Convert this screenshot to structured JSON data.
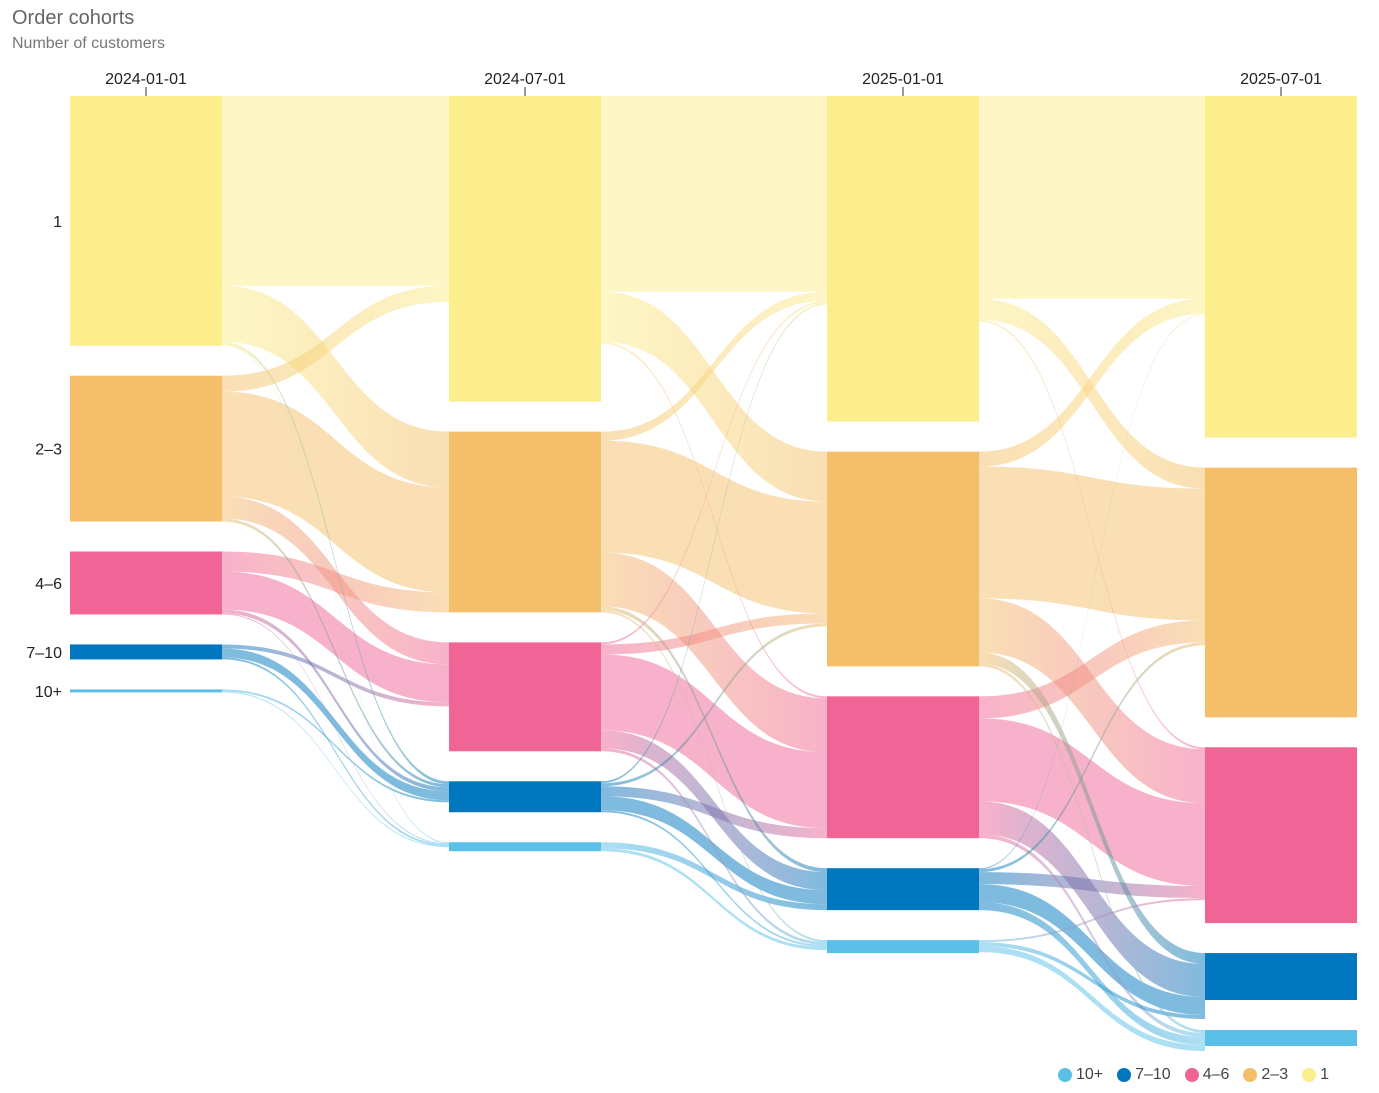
{
  "header": {
    "title": "Order cohorts",
    "subtitle": "Number of customers"
  },
  "chart_data": {
    "type": "sankey",
    "title": "Order cohorts",
    "subtitle": "Number of customers",
    "periods": [
      "2024-01-01",
      "2024-07-01",
      "2025-01-01",
      "2025-07-01"
    ],
    "categories": [
      "1",
      "2–3",
      "4–6",
      "7–10",
      "10+"
    ],
    "colors": {
      "1": "#fcee8c",
      "2–3": "#f4be6a",
      "4–6": "#f06496",
      "7–10": "#0077be",
      "10+": "#5ac0e8"
    },
    "nodes": [
      [
        250,
        146,
        63,
        15,
        3
      ],
      [
        306,
        181,
        109,
        31,
        9
      ],
      [
        326,
        215,
        142,
        42,
        13
      ],
      [
        342,
        250,
        176,
        47,
        16
      ]
    ],
    "flows": [
      [
        [
          190,
          56,
          0,
          3,
          1
        ],
        [
          16,
          105,
          22,
          3,
          0
        ],
        [
          0,
          20,
          38,
          4,
          1
        ],
        [
          0,
          0,
          4,
          9,
          2
        ],
        [
          0,
          0,
          0,
          2,
          1
        ]
      ],
      [
        [
          196,
          50,
          2,
          0,
          0
        ],
        [
          9,
          112,
          54,
          4,
          2
        ],
        [
          2,
          10,
          76,
          18,
          3
        ],
        [
          2,
          3,
          10,
          14,
          2
        ],
        [
          0,
          0,
          0,
          6,
          3
        ]
      ],
      [
        [
          203,
          21,
          2,
          0,
          0
        ],
        [
          15,
          132,
          54,
          11,
          3
        ],
        [
          0,
          22,
          83,
          33,
          4
        ],
        [
          1,
          3,
          12,
          18,
          8
        ],
        [
          0,
          0,
          2,
          4,
          6
        ]
      ]
    ]
  },
  "legend": {
    "items": [
      {
        "label": "10+",
        "color": "#5ac0e8"
      },
      {
        "label": "7–10",
        "color": "#0077be"
      },
      {
        "label": "4–6",
        "color": "#f06496"
      },
      {
        "label": "2–3",
        "color": "#f4be6a"
      },
      {
        "label": "1",
        "color": "#fcee8c"
      }
    ]
  }
}
